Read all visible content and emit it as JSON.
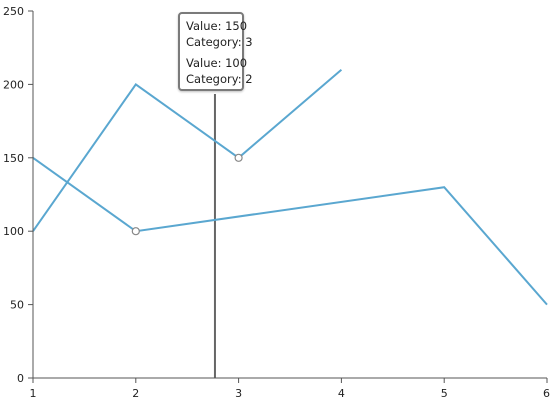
{
  "chart_data": {
    "type": "line",
    "x_axis": {
      "min": 1,
      "max": 6,
      "ticks": [
        1,
        2,
        3,
        4,
        5,
        6
      ]
    },
    "y_axis": {
      "min": 0,
      "max": 250,
      "ticks": [
        0,
        50,
        100,
        150,
        200,
        250
      ]
    },
    "series": [
      {
        "points": [
          [
            1,
            100
          ],
          [
            2,
            200
          ],
          [
            3,
            150
          ],
          [
            4,
            210
          ]
        ]
      },
      {
        "points": [
          [
            1,
            150
          ],
          [
            2,
            100
          ],
          [
            5,
            130
          ],
          [
            6,
            50
          ]
        ]
      }
    ],
    "highlighted_points": [
      [
        3,
        150
      ],
      [
        2,
        100
      ]
    ],
    "trackball_x": 2.77,
    "colors": {
      "series": "#5aa7d0",
      "axis": "#555555",
      "trackball": "#666666",
      "marker_fill": "#ffffff",
      "marker_stroke": "#888888"
    }
  },
  "tooltip": {
    "entries": [
      {
        "value": "Value: 150",
        "category": "Category: 3"
      },
      {
        "value": "Value: 100",
        "category": "Category: 2"
      }
    ]
  }
}
